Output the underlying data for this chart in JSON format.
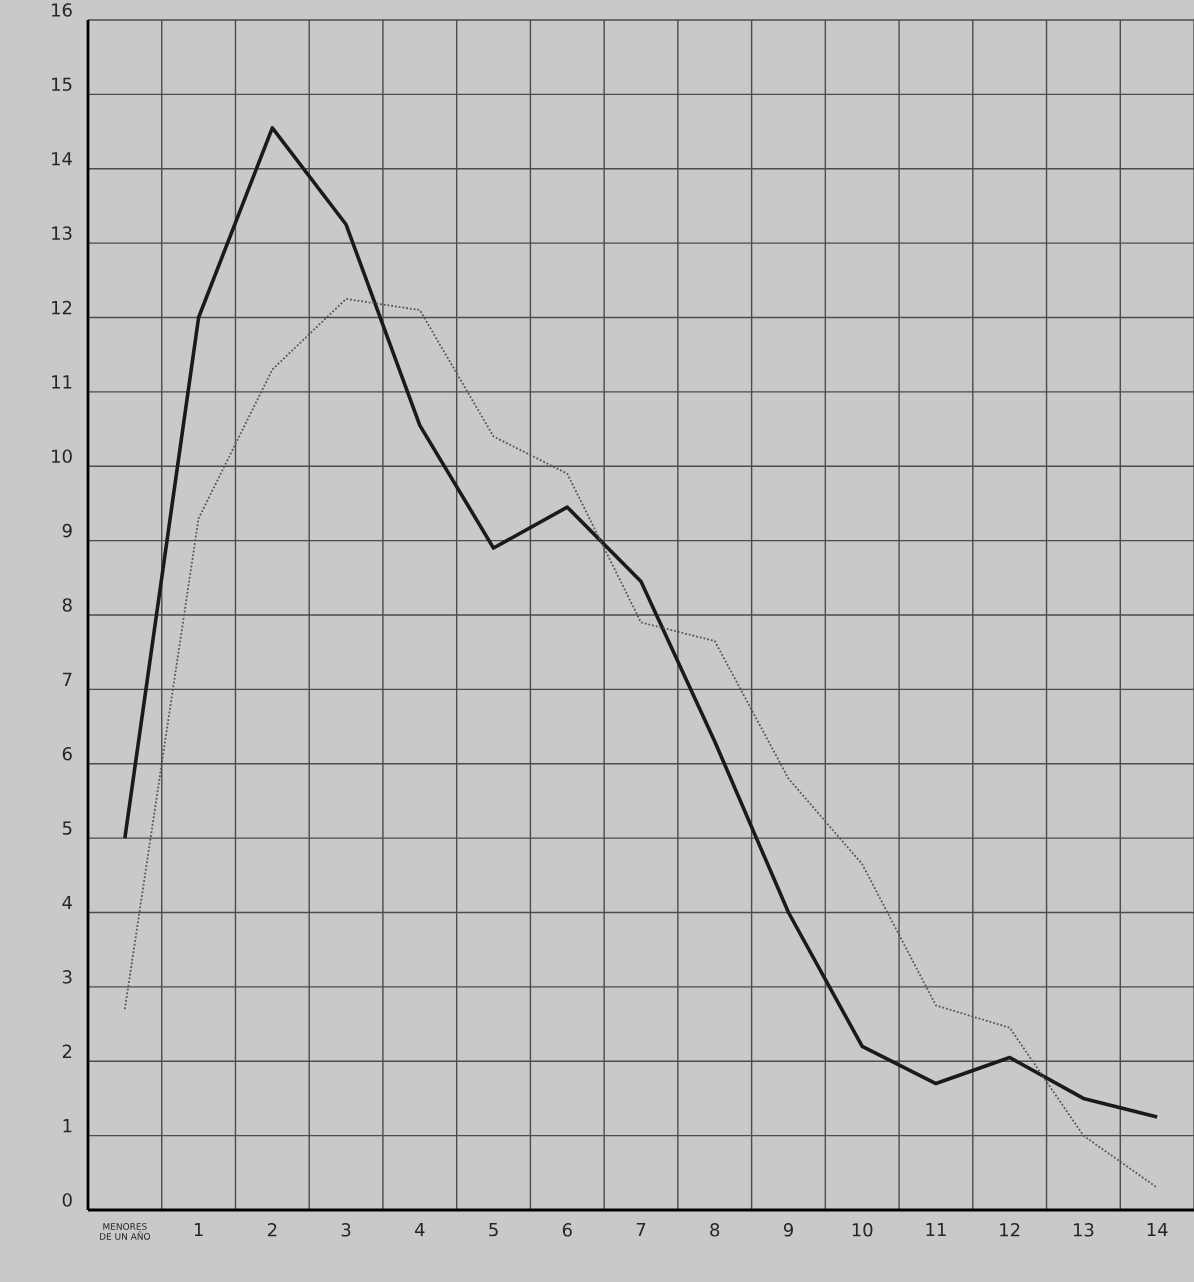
{
  "chart_data": {
    "type": "line",
    "categories": [
      "MENORES DE UN AÑO",
      "1",
      "2",
      "3",
      "4",
      "5",
      "6",
      "7",
      "8",
      "9",
      "10",
      "11",
      "12",
      "13",
      "14"
    ],
    "series": [
      {
        "color": "#1a1a1a",
        "line_style": "solid",
        "values": [
          5.0,
          12.0,
          14.55,
          13.25,
          10.55,
          8.9,
          9.45,
          8.45,
          6.3,
          4.0,
          2.2,
          1.7,
          2.05,
          1.5,
          1.25
        ]
      },
      {
        "color": "#555555",
        "line_style": "dotted",
        "values": [
          2.7,
          9.3,
          11.3,
          12.25,
          12.1,
          10.4,
          9.9,
          7.9,
          7.65,
          5.8,
          4.65,
          2.75,
          2.45,
          1.0,
          0.3
        ]
      }
    ],
    "ylim": [
      0,
      16
    ],
    "yticks": [
      0,
      1,
      2,
      3,
      4,
      5,
      6,
      7,
      8,
      9,
      10,
      11,
      12,
      13,
      14,
      15,
      16
    ],
    "grid": true
  }
}
